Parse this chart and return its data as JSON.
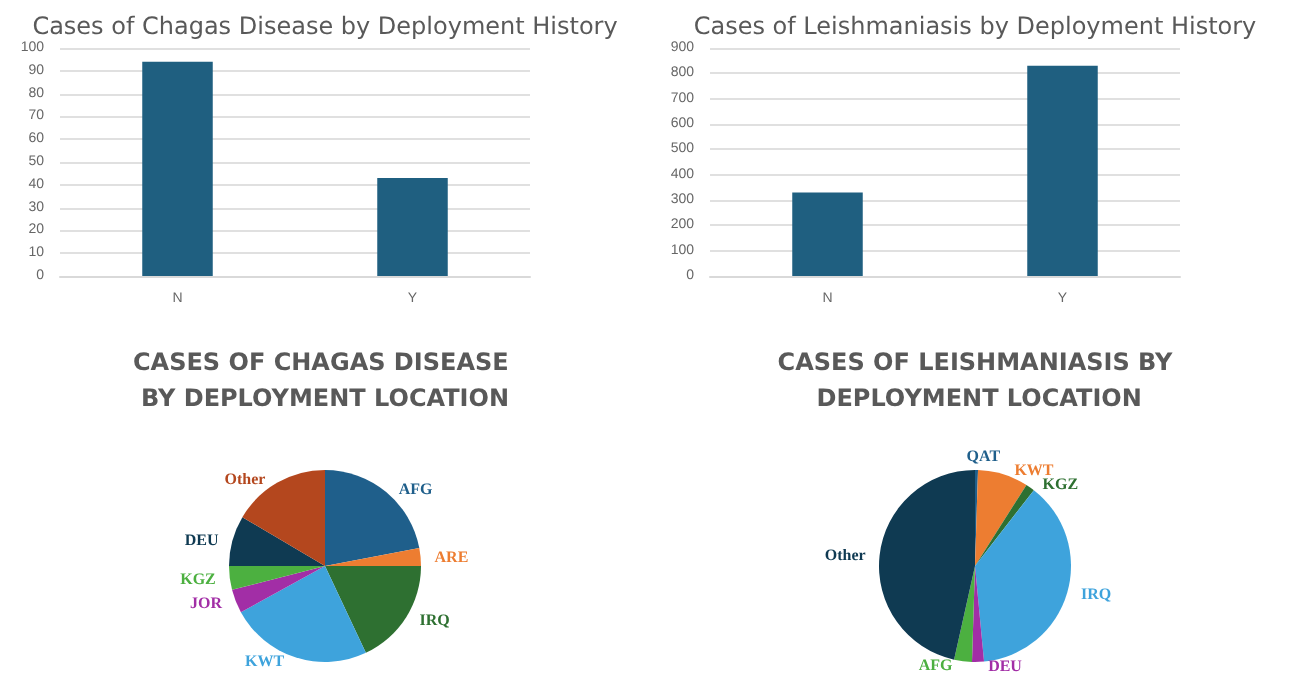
{
  "chart_data": [
    {
      "type": "bar",
      "title": "Cases of Chagas Disease by Deployment History",
      "categories": [
        "N",
        "Y"
      ],
      "values": [
        94,
        43
      ],
      "color": "#1f5f80",
      "ylim": [
        0,
        100
      ],
      "yticks": [
        0,
        10,
        20,
        30,
        40,
        50,
        60,
        70,
        80,
        90,
        100
      ],
      "grid": "y"
    },
    {
      "type": "bar",
      "title": "Cases of Leishmaniasis by Deployment History",
      "categories": [
        "N",
        "Y"
      ],
      "values": [
        330,
        830
      ],
      "color": "#1f5f80",
      "ylim": [
        0,
        900
      ],
      "yticks": [
        0,
        100,
        200,
        300,
        400,
        500,
        600,
        700,
        800,
        900
      ],
      "grid": "y"
    },
    {
      "type": "pie",
      "title": "CASES OF CHAGAS DISEASE BY DEPLOYMENT LOCATION",
      "categories": [
        "AFG",
        "ARE",
        "IRQ",
        "KWT",
        "JOR",
        "KGZ",
        "DEU",
        "Other"
      ],
      "values": [
        22,
        3,
        18,
        24,
        4,
        4,
        8.5,
        16.5
      ],
      "colors": [
        "#1f5f8b",
        "#ed7d31",
        "#2e7031",
        "#3ea3dc",
        "#a22ea6",
        "#4cb040",
        "#0f3a52",
        "#b4471e"
      ]
    },
    {
      "type": "pie",
      "title": "CASES OF LEISHMANIASIS BY DEPLOYMENT LOCATION",
      "categories": [
        "QAT",
        "KWT",
        "KGZ",
        "IRQ",
        "DEU",
        "AFG",
        "Other"
      ],
      "values": [
        0.5,
        8.5,
        1.5,
        38,
        2,
        3,
        46.5
      ],
      "colors": [
        "#1f5f8b",
        "#ed7d31",
        "#2e7031",
        "#3ea3dc",
        "#a22ea6",
        "#4cb040",
        "#0f3a52"
      ]
    }
  ]
}
